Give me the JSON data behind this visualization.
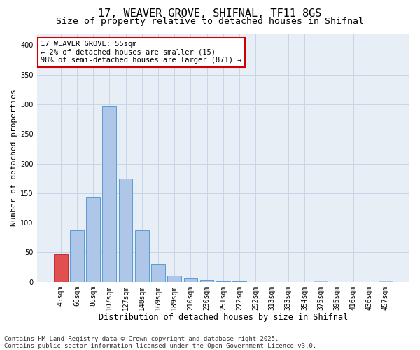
{
  "title1": "17, WEAVER GROVE, SHIFNAL, TF11 8GS",
  "title2": "Size of property relative to detached houses in Shifnal",
  "xlabel": "Distribution of detached houses by size in Shifnal",
  "ylabel": "Number of detached properties",
  "categories": [
    "45sqm",
    "66sqm",
    "86sqm",
    "107sqm",
    "127sqm",
    "148sqm",
    "169sqm",
    "189sqm",
    "210sqm",
    "230sqm",
    "251sqm",
    "272sqm",
    "292sqm",
    "313sqm",
    "333sqm",
    "354sqm",
    "375sqm",
    "395sqm",
    "416sqm",
    "436sqm",
    "457sqm"
  ],
  "values": [
    47,
    87,
    143,
    297,
    175,
    87,
    30,
    10,
    7,
    3,
    1,
    1,
    0,
    0,
    0,
    0,
    2,
    0,
    0,
    0,
    2
  ],
  "bar_color": "#aec6e8",
  "bar_edge_color": "#5b9bd5",
  "highlight_bar_index": 0,
  "highlight_bar_color": "#e05050",
  "highlight_bar_edge_color": "#c03030",
  "annotation_text": "17 WEAVER GROVE: 55sqm\n← 2% of detached houses are smaller (15)\n98% of semi-detached houses are larger (871) →",
  "annotation_box_edgecolor": "#cc0000",
  "annotation_box_facecolor": "white",
  "ylim": [
    0,
    420
  ],
  "yticks": [
    0,
    50,
    100,
    150,
    200,
    250,
    300,
    350,
    400
  ],
  "grid_color": "#c8d4e8",
  "background_color": "#e8eef6",
  "footer_text": "Contains HM Land Registry data © Crown copyright and database right 2025.\nContains public sector information licensed under the Open Government Licence v3.0.",
  "title1_fontsize": 11,
  "title2_fontsize": 9.5,
  "xlabel_fontsize": 8.5,
  "ylabel_fontsize": 8,
  "tick_fontsize": 7,
  "annotation_fontsize": 7.5,
  "footer_fontsize": 6.5
}
